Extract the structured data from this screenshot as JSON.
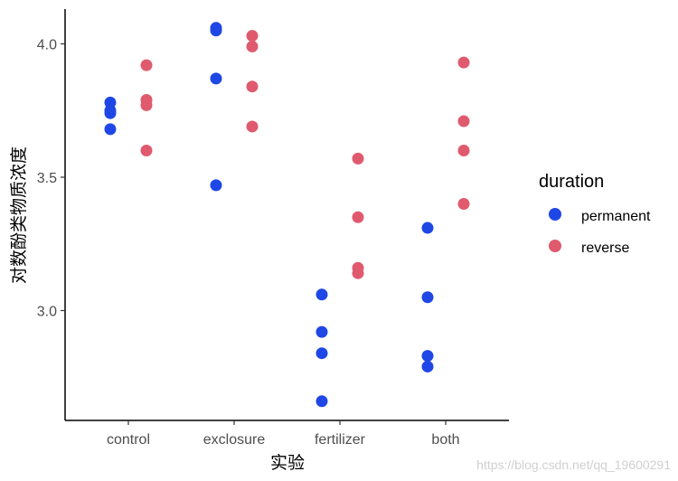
{
  "chart_data": {
    "type": "scatter",
    "xlabel": "实验",
    "ylabel": "对数酚类物质浓度",
    "categories": [
      "control",
      "exclosure",
      "fertilizer",
      "both"
    ],
    "y_ticks": [
      "3.0",
      "3.5",
      "4.0"
    ],
    "ylim": [
      2.59,
      4.13
    ],
    "legend": {
      "title": "duration",
      "placement": "right"
    },
    "grid": false,
    "series": [
      {
        "name": "permanent",
        "color": "#1f47e6",
        "values": [
          [
            3.78,
            3.75,
            3.74,
            3.68
          ],
          [
            4.06,
            4.05,
            3.87,
            3.47
          ],
          [
            3.06,
            2.92,
            2.84,
            2.66
          ],
          [
            3.31,
            3.05,
            2.83,
            2.79
          ]
        ]
      },
      {
        "name": "reverse",
        "color": "#e05a6e",
        "values": [
          [
            3.92,
            3.79,
            3.77,
            3.6
          ],
          [
            4.03,
            3.99,
            3.84,
            3.69
          ],
          [
            3.57,
            3.35,
            3.16,
            3.14
          ],
          [
            3.93,
            3.71,
            3.6,
            3.4
          ]
        ]
      }
    ]
  },
  "watermark": "https://blog.csdn.net/qq_19600291"
}
